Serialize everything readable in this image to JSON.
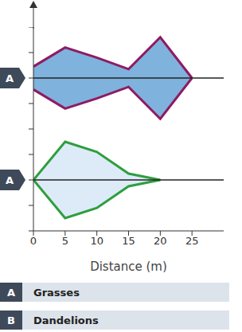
{
  "chart_data": {
    "type": "kite",
    "x_label": "Distance (m)",
    "x": [
      0,
      5,
      10,
      15,
      20,
      25
    ],
    "xlim": [
      0,
      30
    ],
    "xticks": [
      0,
      5,
      10,
      15,
      20,
      25
    ],
    "ylim": [
      -40,
      40
    ],
    "yticks": [
      -40,
      -20,
      0,
      20,
      40
    ],
    "tick_labels": "x",
    "series": [
      {
        "name": "Grasses",
        "label": "A",
        "color": "#8e1b63",
        "values": [
          9,
          24,
          16,
          7,
          32,
          0
        ]
      },
      {
        "name": "Dandelions",
        "label": "A",
        "color": "#2f9e3f",
        "values": [
          0,
          30,
          22,
          5,
          0,
          null
        ]
      }
    ],
    "key_letters": [
      "A",
      "B"
    ]
  }
}
